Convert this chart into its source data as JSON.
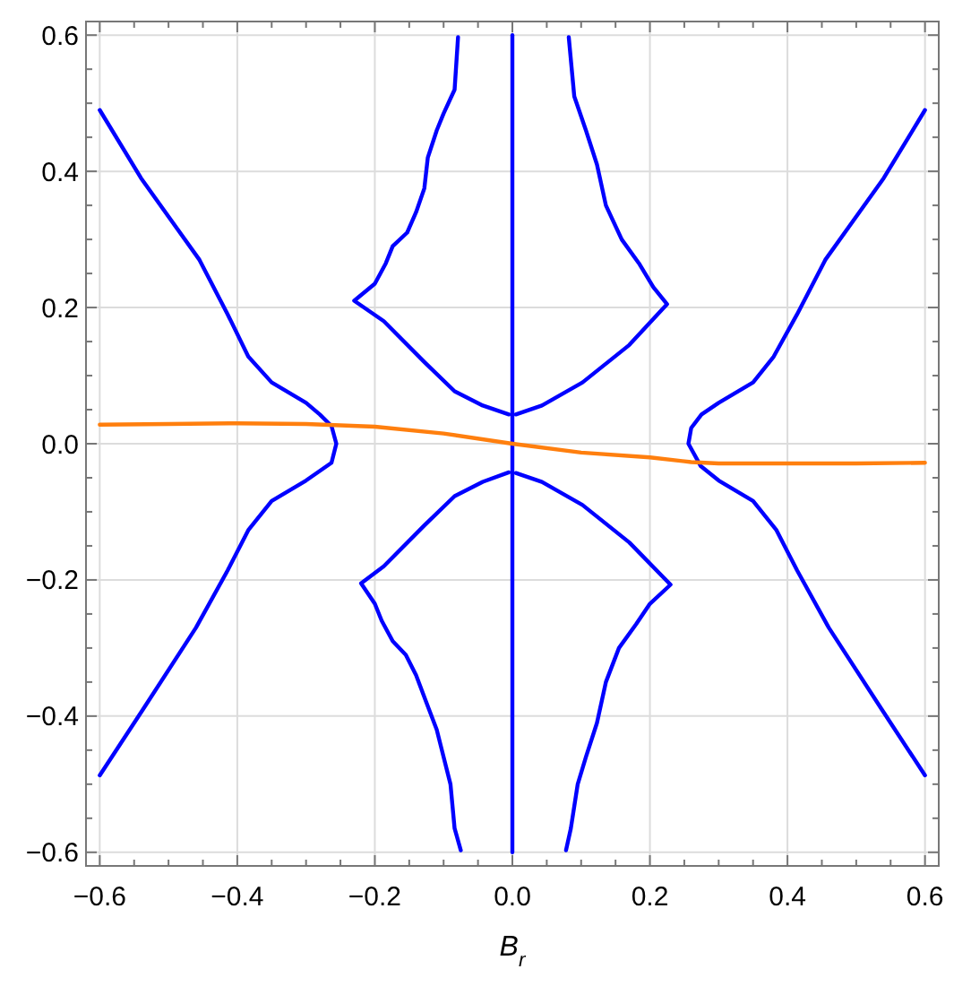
{
  "chart_data": {
    "type": "line",
    "xlabel": "B$_{r}$",
    "xlim": [
      -0.62,
      0.62
    ],
    "ylim": [
      -0.62,
      0.62
    ],
    "xticks": [
      {
        "value": -0.6,
        "label": "−0.6"
      },
      {
        "value": -0.55,
        "label": null
      },
      {
        "value": -0.5,
        "label": null
      },
      {
        "value": -0.45,
        "label": null
      },
      {
        "value": -0.4,
        "label": "−0.4"
      },
      {
        "value": -0.35,
        "label": null
      },
      {
        "value": -0.3,
        "label": null
      },
      {
        "value": -0.25,
        "label": null
      },
      {
        "value": -0.2,
        "label": "−0.2"
      },
      {
        "value": -0.15,
        "label": null
      },
      {
        "value": -0.1,
        "label": null
      },
      {
        "value": -0.05,
        "label": null
      },
      {
        "value": 0,
        "label": "0.0"
      },
      {
        "value": 0.05,
        "label": null
      },
      {
        "value": 0.1,
        "label": null
      },
      {
        "value": 0.15,
        "label": null
      },
      {
        "value": 0.2,
        "label": "0.2"
      },
      {
        "value": 0.25,
        "label": null
      },
      {
        "value": 0.3,
        "label": null
      },
      {
        "value": 0.35,
        "label": null
      },
      {
        "value": 0.4,
        "label": "0.4"
      },
      {
        "value": 0.45,
        "label": null
      },
      {
        "value": 0.5,
        "label": null
      },
      {
        "value": 0.55,
        "label": null
      },
      {
        "value": 0.6,
        "label": "0.6"
      }
    ],
    "yticks": [
      {
        "value": -0.6,
        "label": "−0.6"
      },
      {
        "value": -0.55,
        "label": null
      },
      {
        "value": -0.5,
        "label": null
      },
      {
        "value": -0.45,
        "label": null
      },
      {
        "value": -0.4,
        "label": "−0.4"
      },
      {
        "value": -0.35,
        "label": null
      },
      {
        "value": -0.3,
        "label": null
      },
      {
        "value": -0.25,
        "label": null
      },
      {
        "value": -0.2,
        "label": "−0.2"
      },
      {
        "value": -0.15,
        "label": null
      },
      {
        "value": -0.1,
        "label": null
      },
      {
        "value": -0.05,
        "label": null
      },
      {
        "value": 0,
        "label": "0.0"
      },
      {
        "value": 0.05,
        "label": null
      },
      {
        "value": 0.1,
        "label": null
      },
      {
        "value": 0.15,
        "label": null
      },
      {
        "value": 0.2,
        "label": "0.2"
      },
      {
        "value": 0.25,
        "label": null
      },
      {
        "value": 0.3,
        "label": null
      },
      {
        "value": 0.35,
        "label": null
      },
      {
        "value": 0.4,
        "label": "0.4"
      },
      {
        "value": 0.45,
        "label": null
      },
      {
        "value": 0.5,
        "label": null
      },
      {
        "value": 0.55,
        "label": null
      },
      {
        "value": 0.6,
        "label": "0.6"
      }
    ],
    "grid": true,
    "series": [
      {
        "color": "#0000ff",
        "x": [
          -0.6,
          -0.54,
          -0.455,
          -0.414,
          -0.384,
          -0.35,
          -0.3,
          -0.28,
          -0.263,
          -0.256,
          -0.263,
          -0.3,
          -0.35,
          -0.384,
          -0.414,
          -0.46,
          -0.537,
          -0.6
        ],
        "values": [
          0.49,
          0.39,
          0.27,
          0.19,
          0.128,
          0.09,
          0.06,
          0.043,
          0.026,
          0,
          -0.028,
          -0.054,
          -0.084,
          -0.127,
          -0.186,
          -0.27,
          -0.39,
          -0.487
        ]
      },
      {
        "color": "#0000ff",
        "x": [
          0.6,
          0.54,
          0.455,
          0.414,
          0.38,
          0.35,
          0.3,
          0.275,
          0.26,
          0.256,
          0.274,
          0.3,
          0.35,
          0.384,
          0.414,
          0.46,
          0.537,
          0.6
        ],
        "values": [
          0.49,
          0.39,
          0.27,
          0.19,
          0.128,
          0.09,
          0.06,
          0.043,
          0.023,
          0,
          -0.033,
          -0.054,
          -0.084,
          -0.127,
          -0.186,
          -0.27,
          -0.39,
          -0.487
        ]
      },
      {
        "color": "#0000ff",
        "x": [
          -0.079,
          -0.084,
          -0.1,
          -0.11,
          -0.123,
          -0.128,
          -0.14,
          -0.153,
          -0.174,
          -0.184,
          -0.2,
          -0.23,
          -0.187,
          -0.128,
          -0.084,
          -0.043,
          -0.005
        ],
        "values": [
          0.597,
          0.52,
          0.485,
          0.46,
          0.42,
          0.375,
          0.34,
          0.31,
          0.29,
          0.265,
          0.235,
          0.21,
          0.18,
          0.12,
          0.077,
          0.056,
          0.043
        ]
      },
      {
        "color": "#0000ff",
        "x": [
          0.082,
          0.09,
          0.107,
          0.123,
          0.136,
          0.159,
          0.184,
          0.205,
          0.225,
          0.17,
          0.102,
          0.043,
          0.005
        ],
        "values": [
          0.597,
          0.51,
          0.46,
          0.41,
          0.35,
          0.3,
          0.265,
          0.23,
          0.205,
          0.145,
          0.09,
          0.056,
          0.043
        ]
      },
      {
        "color": "#0000ff",
        "x": [
          -0.075,
          -0.084,
          -0.09,
          -0.1,
          -0.11,
          -0.125,
          -0.14,
          -0.155,
          -0.174,
          -0.19,
          -0.2,
          -0.22,
          -0.187,
          -0.128,
          -0.084,
          -0.043,
          -0.005
        ],
        "values": [
          -0.597,
          -0.565,
          -0.5,
          -0.46,
          -0.42,
          -0.38,
          -0.34,
          -0.31,
          -0.29,
          -0.26,
          -0.235,
          -0.205,
          -0.18,
          -0.12,
          -0.077,
          -0.056,
          -0.042
        ]
      },
      {
        "color": "#0000ff",
        "x": [
          0.078,
          0.085,
          0.095,
          0.107,
          0.123,
          0.136,
          0.155,
          0.18,
          0.2,
          0.23,
          0.17,
          0.102,
          0.043,
          0.005
        ],
        "values": [
          -0.597,
          -0.565,
          -0.5,
          -0.46,
          -0.41,
          -0.35,
          -0.3,
          -0.265,
          -0.235,
          -0.207,
          -0.145,
          -0.09,
          -0.056,
          -0.043
        ]
      },
      {
        "color": "#0000ff",
        "x": [
          0,
          0
        ],
        "values": [
          -0.6,
          0.6
        ]
      },
      {
        "color": "#ff7f0e",
        "x": [
          -0.6,
          -0.5,
          -0.4,
          -0.3,
          -0.2,
          -0.1,
          0,
          0.1,
          0.2,
          0.26,
          0.3,
          0.4,
          0.5,
          0.6
        ],
        "values": [
          0.028,
          0.029,
          0.03,
          0.029,
          0.025,
          0.015,
          0,
          -0.013,
          -0.02,
          -0.027,
          -0.029,
          -0.029,
          -0.029,
          -0.028
        ]
      }
    ]
  }
}
